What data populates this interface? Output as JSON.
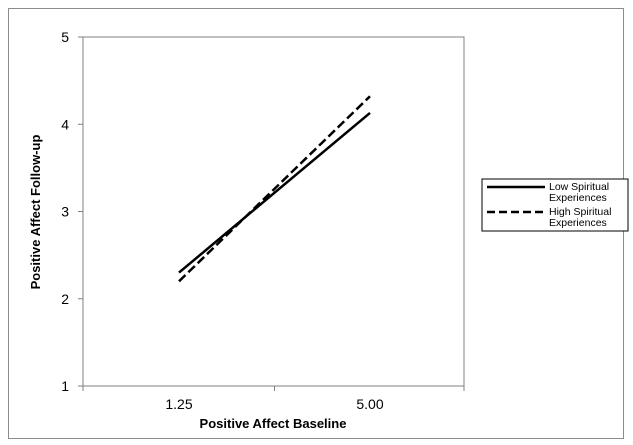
{
  "chart_data": {
    "type": "line",
    "title": "",
    "xlabel": "Positive Affect Baseline",
    "ylabel": "Positive Affect Follow-up",
    "categories": [
      "1.25",
      "5.00"
    ],
    "ylim": [
      1,
      5
    ],
    "yticks": [
      "1",
      "2",
      "3",
      "4",
      "5"
    ],
    "grid": false,
    "legend_position": "right",
    "series": [
      {
        "name": "Low Spiritual Experiences",
        "name_lines": [
          "Low Spiritual",
          "Experiences"
        ],
        "values": [
          2.3,
          4.13
        ],
        "style": "solid",
        "color": "#000000"
      },
      {
        "name": "High Spiritual Experiences",
        "name_lines": [
          "High Spiritual",
          "Experiences"
        ],
        "values": [
          2.2,
          4.32
        ],
        "style": "dashed",
        "color": "#000000"
      }
    ]
  }
}
